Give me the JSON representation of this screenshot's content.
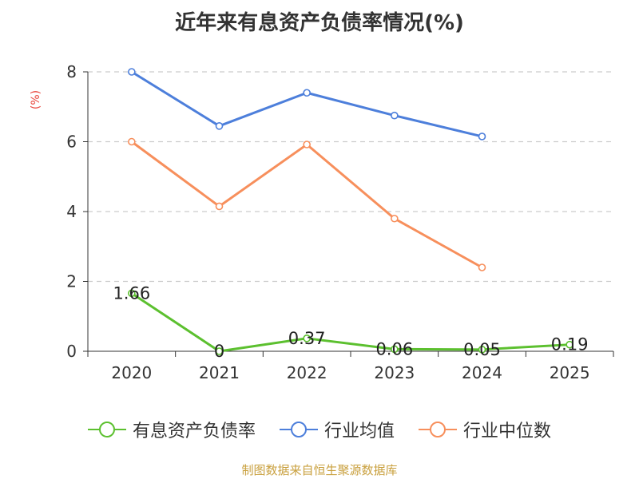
{
  "title": "近年来有息资产负债率情况(%)",
  "source": "制图数据来自恒生聚源数据库",
  "colors": {
    "series_0": "#5cc02f",
    "series_1": "#4d7fdb",
    "series_2": "#f78f5c",
    "ylabel": "#e8443a",
    "source": "#c9a03e"
  },
  "chart_data": {
    "type": "line",
    "title": "近年来有息资产负债率情况(%)",
    "xlabel": "",
    "ylabel": "(%)",
    "categories": [
      "2020",
      "2021",
      "2022",
      "2023",
      "2024",
      "2025"
    ],
    "ylim": [
      0,
      8
    ],
    "yticks": [
      0,
      2,
      4,
      6,
      8
    ],
    "grid": true,
    "legend": "bottom",
    "series": [
      {
        "name": "有息资产负债率",
        "values": [
          1.66,
          0,
          0.37,
          0.06,
          0.05,
          0.19
        ],
        "labels": [
          "1.66",
          "0",
          "0.37",
          "0.06",
          "0.05",
          "0.19"
        ]
      },
      {
        "name": "行业均值",
        "values": [
          8.0,
          6.45,
          7.4,
          6.75,
          6.15,
          null
        ]
      },
      {
        "name": "行业中位数",
        "values": [
          6.0,
          4.15,
          5.92,
          3.8,
          2.4,
          null
        ]
      }
    ]
  }
}
